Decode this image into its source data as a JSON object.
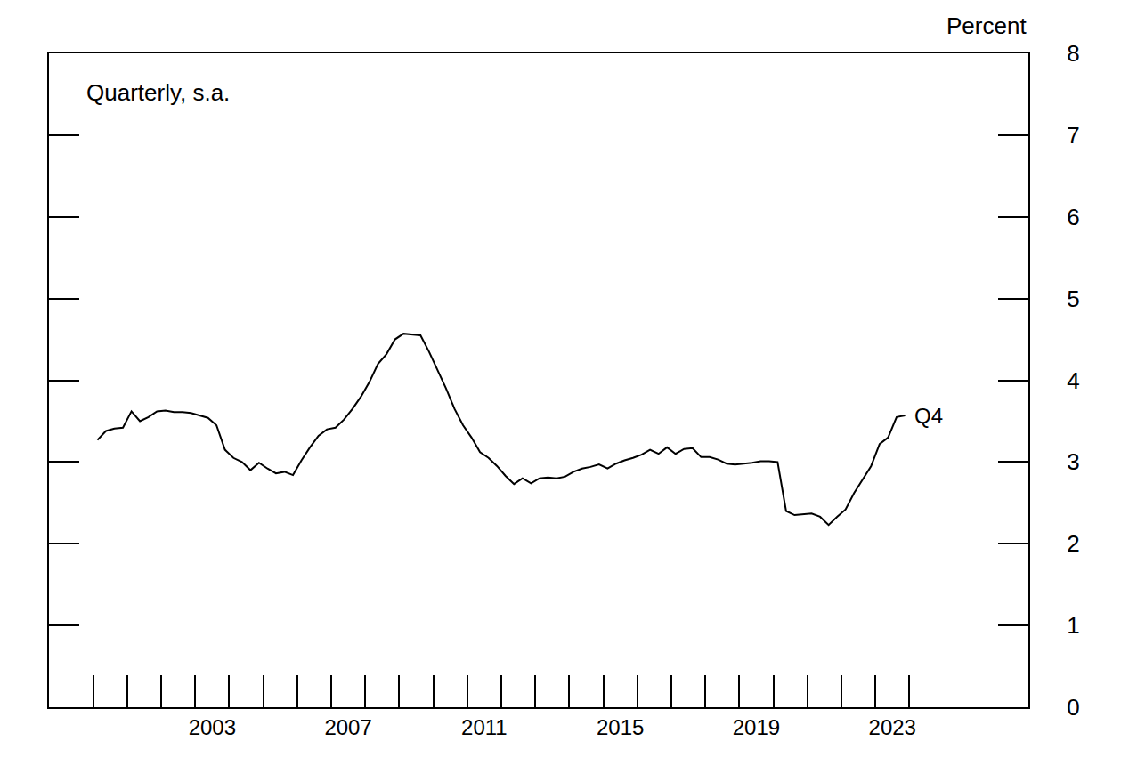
{
  "chart_data": {
    "type": "line",
    "note": "Quarterly, s.a.",
    "ylabel": "Percent",
    "end_label": "Q4",
    "color": "#000000",
    "x": [
      2000.125,
      2000.375,
      2000.625,
      2000.875,
      2001.125,
      2001.375,
      2001.625,
      2001.875,
      2002.125,
      2002.375,
      2002.625,
      2002.875,
      2003.125,
      2003.375,
      2003.625,
      2003.875,
      2004.125,
      2004.375,
      2004.625,
      2004.875,
      2005.125,
      2005.375,
      2005.625,
      2005.875,
      2006.125,
      2006.375,
      2006.625,
      2006.875,
      2007.125,
      2007.375,
      2007.625,
      2007.875,
      2008.125,
      2008.375,
      2008.625,
      2008.875,
      2009.125,
      2009.375,
      2009.625,
      2009.875,
      2010.125,
      2010.375,
      2010.625,
      2010.875,
      2011.125,
      2011.375,
      2011.625,
      2011.875,
      2012.125,
      2012.375,
      2012.625,
      2012.875,
      2013.125,
      2013.375,
      2013.625,
      2013.875,
      2014.125,
      2014.375,
      2014.625,
      2014.875,
      2015.125,
      2015.375,
      2015.625,
      2015.875,
      2016.125,
      2016.375,
      2016.625,
      2016.875,
      2017.125,
      2017.375,
      2017.625,
      2017.875,
      2018.125,
      2018.375,
      2018.625,
      2018.875,
      2019.125,
      2019.375,
      2019.625,
      2019.875,
      2020.125,
      2020.375,
      2020.625,
      2020.875,
      2021.125,
      2021.375,
      2021.625,
      2021.875,
      2022.125,
      2022.375,
      2022.625,
      2022.875,
      2023.125,
      2023.375,
      2023.625,
      2023.875
    ],
    "values": [
      3.27,
      3.38,
      3.41,
      3.42,
      3.62,
      3.5,
      3.55,
      3.62,
      3.63,
      3.61,
      3.61,
      3.6,
      3.57,
      3.54,
      3.45,
      3.15,
      3.05,
      3.0,
      2.9,
      2.99,
      2.92,
      2.86,
      2.88,
      2.84,
      3.02,
      3.18,
      3.32,
      3.4,
      3.42,
      3.52,
      3.65,
      3.8,
      3.98,
      4.2,
      4.32,
      4.5,
      4.57,
      4.56,
      4.55,
      4.35,
      4.12,
      3.9,
      3.65,
      3.45,
      3.3,
      3.12,
      3.05,
      2.95,
      2.83,
      2.73,
      2.8,
      2.74,
      2.8,
      2.81,
      2.8,
      2.82,
      2.88,
      2.92,
      2.94,
      2.97,
      2.92,
      2.98,
      3.02,
      3.05,
      3.09,
      3.15,
      3.1,
      3.18,
      3.1,
      3.16,
      3.17,
      3.06,
      3.06,
      3.03,
      2.98,
      2.97,
      2.98,
      2.99,
      3.01,
      3.01,
      3.0,
      2.4,
      2.35,
      2.36,
      2.37,
      2.33,
      2.23,
      2.33,
      2.42,
      2.62,
      2.78,
      2.95,
      3.22,
      3.3,
      3.55,
      3.57
    ],
    "xlim": [
      1998.7,
      2027.5
    ],
    "xticks": [
      {
        "value": 2003.5,
        "label": "2003"
      },
      {
        "value": 2007.5,
        "label": "2007"
      },
      {
        "value": 2011.5,
        "label": "2011"
      },
      {
        "value": 2015.5,
        "label": "2015"
      },
      {
        "value": 2019.5,
        "label": "2019"
      },
      {
        "value": 2023.5,
        "label": "2023"
      }
    ],
    "ylim": [
      0,
      8
    ],
    "yticks": [
      0,
      1,
      2,
      3,
      4,
      5,
      6,
      7,
      8
    ],
    "grid": false
  }
}
